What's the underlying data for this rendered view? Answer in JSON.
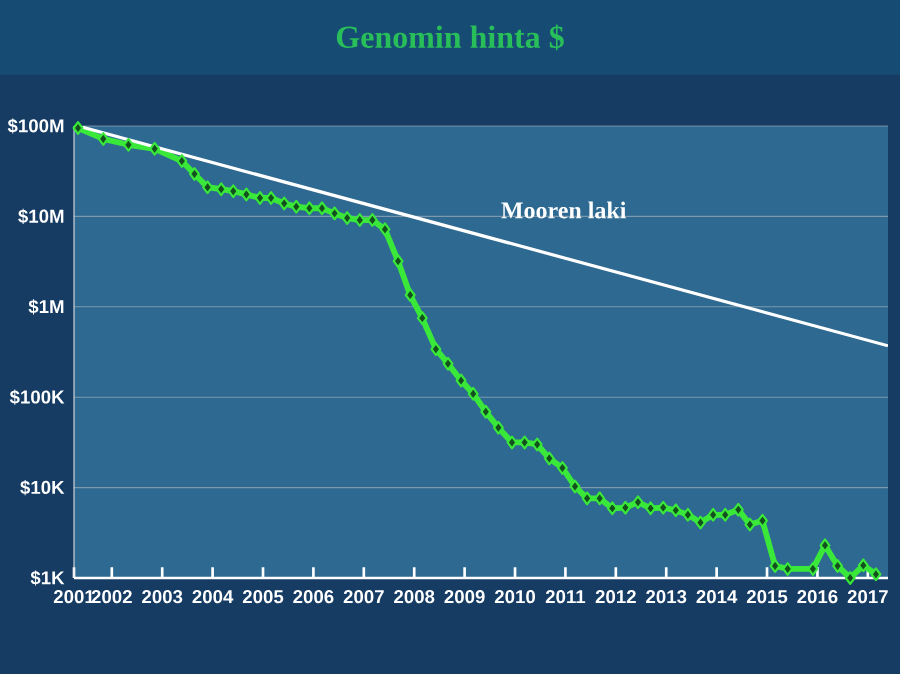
{
  "chart_data": {
    "type": "line",
    "title": "Genomin hinta $",
    "log": "y",
    "grid": "y",
    "legend": false,
    "marker": "diamond",
    "xlim": [
      2001.25,
      2017.4
    ],
    "xticks": [
      {
        "value": 2001.25,
        "label": "2001"
      },
      2002,
      2003,
      2004,
      2005,
      2006,
      2007,
      2008,
      2009,
      2010,
      2011,
      2012,
      2013,
      2014,
      2015,
      2016,
      2017
    ],
    "ylim": [
      1000,
      100000000
    ],
    "yticks": [
      {
        "value": 1000,
        "label": "$1K"
      },
      {
        "value": 10000,
        "label": "$10K"
      },
      {
        "value": 100000,
        "label": "$100K"
      },
      {
        "value": 1000000,
        "label": "$1M"
      },
      {
        "value": 10000000,
        "label": "$10M"
      },
      {
        "value": 100000000,
        "label": "$100M"
      }
    ],
    "series": [
      {
        "color": "#3ae83a",
        "x": [
          2001.33,
          2001.83,
          2002.33,
          2002.85,
          2003.39,
          2003.64,
          2003.9,
          2004.17,
          2004.41,
          2004.67,
          2004.94,
          2005.16,
          2005.42,
          2005.66,
          2005.92,
          2006.17,
          2006.42,
          2006.67,
          2006.92,
          2007.17,
          2007.42,
          2007.68,
          2007.92,
          2008.16,
          2008.43,
          2008.67,
          2008.93,
          2009.17,
          2009.42,
          2009.67,
          2009.94,
          2010.19,
          2010.44,
          2010.68,
          2010.94,
          2011.19,
          2011.43,
          2011.68,
          2011.93,
          2012.19,
          2012.44,
          2012.69,
          2012.94,
          2013.19,
          2013.43,
          2013.68,
          2013.93,
          2014.17,
          2014.43,
          2014.66,
          2014.91,
          2015.16,
          2015.41,
          2015.91,
          2016.15,
          2016.4,
          2016.65,
          2016.91,
          2017.16
        ],
        "values": [
          95000000,
          72000000,
          62000000,
          56000000,
          41000000,
          29500000,
          21000000,
          20000000,
          19000000,
          17500000,
          16000000,
          16000000,
          13900000,
          12800000,
          12300000,
          12300000,
          10800000,
          9600000,
          9100000,
          9100000,
          7200000,
          3200000,
          1350000,
          750000,
          340000,
          235000,
          153000,
          109000,
          69000,
          46000,
          31600,
          31600,
          30000,
          21000,
          16500,
          10300,
          7600,
          7600,
          5900,
          6000,
          6900,
          5900,
          6000,
          5600,
          5000,
          4100,
          5000,
          5000,
          5700,
          3900,
          4300,
          1360,
          1260,
          1260,
          2300,
          1360,
          1000,
          1380,
          1100
        ]
      },
      {
        "name": "Mooren laki",
        "color": "#ffffff",
        "marker": "none",
        "x": [
          2001.33,
          2017.4
        ],
        "values": [
          100000000,
          370000
        ]
      }
    ]
  }
}
